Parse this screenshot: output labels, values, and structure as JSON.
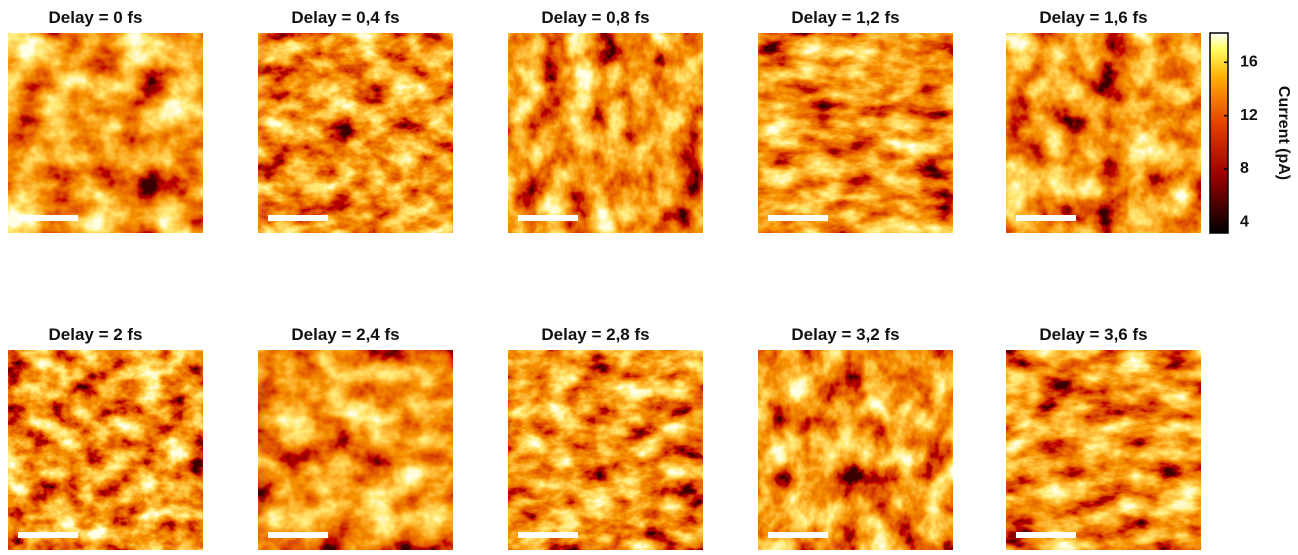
{
  "panels": [
    {
      "title": "Delay = 0 fs"
    },
    {
      "title": "Delay = 0,4 fs"
    },
    {
      "title": "Delay = 0,8 fs"
    },
    {
      "title": "Delay = 1,2 fs"
    },
    {
      "title": "Delay = 1,6 fs"
    },
    {
      "title": "Delay = 2 fs"
    },
    {
      "title": "Delay = 2,4 fs"
    },
    {
      "title": "Delay = 2,8 fs"
    },
    {
      "title": "Delay = 3,2 fs"
    },
    {
      "title": "Delay = 3,6 fs"
    }
  ],
  "colorbar": {
    "label": "Current (pA)",
    "lim": [
      3.2,
      18.2
    ],
    "ticks": [
      4,
      8,
      12,
      16
    ]
  }
}
